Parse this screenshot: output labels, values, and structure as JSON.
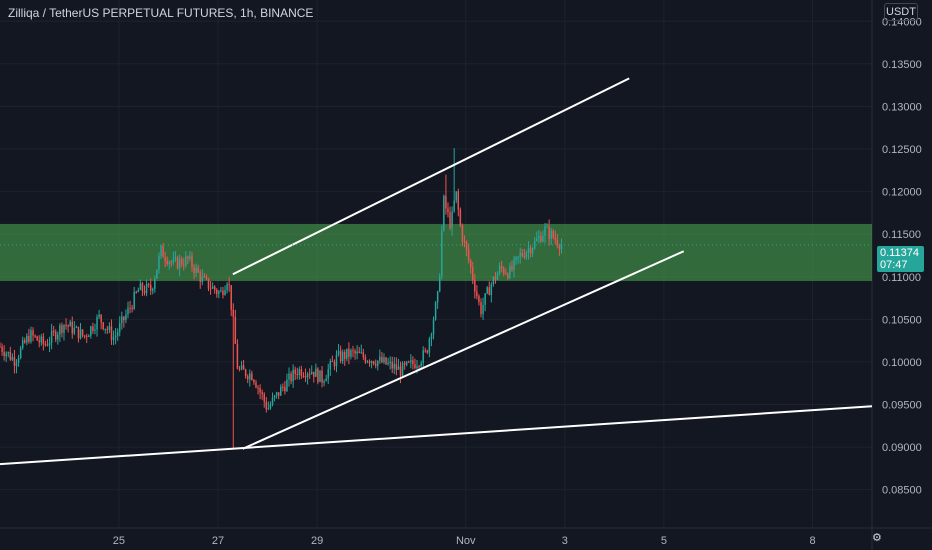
{
  "header": {
    "title": "Zilliqa / TetherUS PERPETUAL FUTURES, 1h, BINANCE",
    "currency": "USDT"
  },
  "price_tag": {
    "value": "0.11374",
    "countdown": "07:47"
  },
  "colors": {
    "background": "#131722",
    "up": "#26a69a",
    "down": "#ef5350",
    "zone": "#4caf50",
    "lines": "#ffffff",
    "axis_text": "#b2b5be"
  },
  "chart_data": {
    "type": "candlestick",
    "y_axis": {
      "ticks": [
        "0.14000",
        "0.13500",
        "0.13000",
        "0.12500",
        "0.12000",
        "0.11500",
        "0.11000",
        "0.10500",
        "0.10000",
        "0.09500",
        "0.09000",
        "0.08500"
      ],
      "range": [
        0.0805,
        0.1425
      ]
    },
    "x_axis": {
      "ticks": [
        {
          "label": "25",
          "day": 25
        },
        {
          "label": "27",
          "day": 27
        },
        {
          "label": "29",
          "day": 29
        },
        {
          "label": "Nov",
          "day": 32
        },
        {
          "label": "3",
          "day": 34
        },
        {
          "label": "5",
          "day": 36
        },
        {
          "label": "8",
          "day": 39
        }
      ],
      "range_days": [
        22.6,
        40.2
      ]
    },
    "price_path": [
      [
        22.6,
        0.1018
      ],
      [
        22.9,
        0.1002
      ],
      [
        23.2,
        0.1032
      ],
      [
        23.5,
        0.102
      ],
      [
        23.9,
        0.1045
      ],
      [
        24.3,
        0.103
      ],
      [
        24.6,
        0.1052
      ],
      [
        24.9,
        0.1028
      ],
      [
        25.1,
        0.105
      ],
      [
        25.4,
        0.1085
      ],
      [
        25.65,
        0.1085
      ],
      [
        25.85,
        0.113
      ],
      [
        26.1,
        0.1115
      ],
      [
        26.4,
        0.112
      ],
      [
        26.7,
        0.1095
      ],
      [
        27.05,
        0.108
      ],
      [
        27.2,
        0.11
      ],
      [
        27.3,
        0.105
      ],
      [
        27.4,
        0.099
      ],
      [
        27.7,
        0.0985
      ],
      [
        28.0,
        0.0945
      ],
      [
        28.3,
        0.097
      ],
      [
        28.6,
        0.099
      ],
      [
        28.9,
        0.099
      ],
      [
        29.1,
        0.098
      ],
      [
        29.4,
        0.1005
      ],
      [
        29.7,
        0.101
      ],
      [
        30.0,
        0.1005
      ],
      [
        30.3,
        0.1
      ],
      [
        30.7,
        0.099
      ],
      [
        31.0,
        0.1
      ],
      [
        31.2,
        0.101
      ],
      [
        31.45,
        0.108
      ],
      [
        31.55,
        0.119
      ],
      [
        31.7,
        0.116
      ],
      [
        31.8,
        0.12
      ],
      [
        31.9,
        0.1155
      ],
      [
        32.1,
        0.111
      ],
      [
        32.3,
        0.106
      ],
      [
        32.5,
        0.109
      ],
      [
        32.7,
        0.111
      ],
      [
        32.9,
        0.1105
      ],
      [
        33.1,
        0.1125
      ],
      [
        33.4,
        0.114
      ],
      [
        33.6,
        0.1155
      ],
      [
        33.8,
        0.1145
      ],
      [
        33.95,
        0.1137
      ]
    ],
    "wicks": [
      {
        "day": 27.3,
        "low": 0.0898
      },
      {
        "day": 31.75,
        "high": 0.1251
      },
      {
        "day": 31.6,
        "high": 0.122
      }
    ],
    "supply_zone": {
      "from": 0.1095,
      "to": 0.1162
    },
    "trendlines": [
      {
        "from": [
          27.3,
          0.1103
        ],
        "to": [
          35.3,
          0.1333
        ]
      },
      {
        "from": [
          27.5,
          0.0898
        ],
        "to": [
          36.4,
          0.113
        ]
      },
      {
        "from": [
          22.6,
          0.088
        ],
        "to": [
          40.2,
          0.0948
        ]
      }
    ],
    "last_price": 0.11374
  }
}
